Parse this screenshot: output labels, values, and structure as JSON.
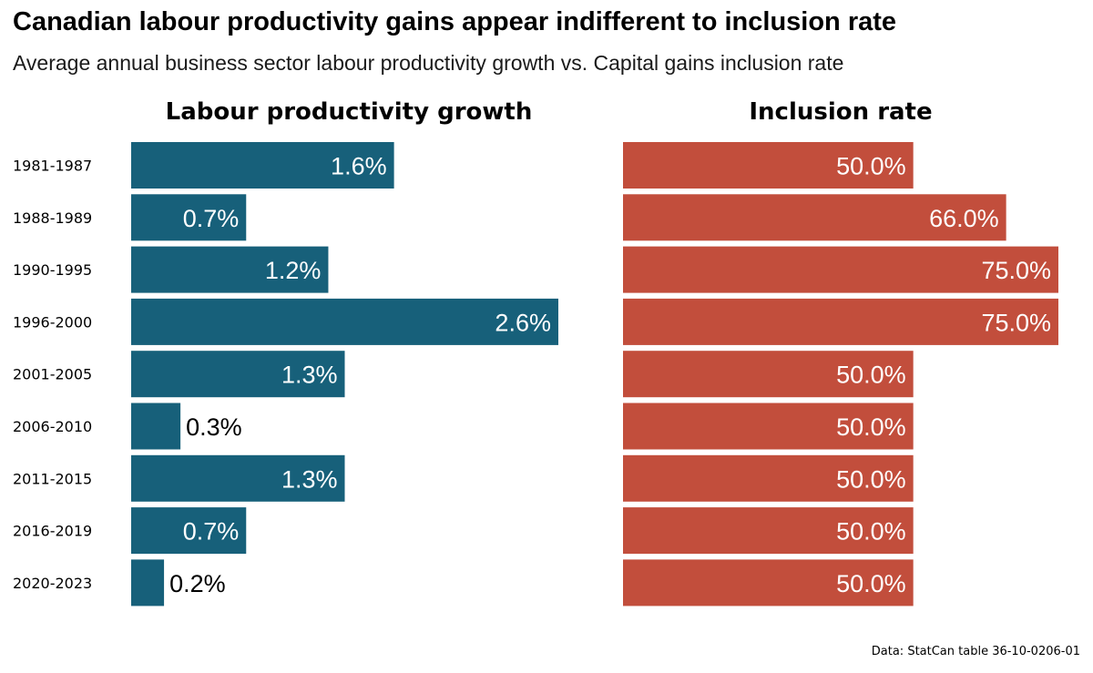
{
  "title": "Canadian labour productivity gains appear indifferent to inclusion rate",
  "subtitle": "Average annual business sector labour productivity growth vs. Capital gains inclusion rate",
  "source": "Data: StatCan table 36-10-0206-01",
  "colors": {
    "productivity": "#17607a",
    "inclusion": "#c24e3c"
  },
  "chart_data": {
    "type": "bar",
    "orientation": "horizontal",
    "categories": [
      "1981-1987",
      "1988-1989",
      "1990-1995",
      "1996-2000",
      "2001-2005",
      "2006-2010",
      "2011-2015",
      "2016-2019",
      "2020-2023"
    ],
    "series": [
      {
        "name": "Labour productivity growth",
        "values": [
          1.6,
          0.7,
          1.2,
          2.6,
          1.3,
          0.3,
          1.3,
          0.7,
          0.2
        ],
        "labels": [
          "1.6%",
          "0.7%",
          "1.2%",
          "2.6%",
          "1.3%",
          "0.3%",
          "1.3%",
          "0.7%",
          "0.2%"
        ],
        "xlim": [
          0,
          2.65
        ]
      },
      {
        "name": "Inclusion rate",
        "values": [
          50.0,
          66.0,
          75.0,
          75.0,
          50.0,
          50.0,
          50.0,
          50.0,
          50.0
        ],
        "labels": [
          "50.0%",
          "66.0%",
          "75.0%",
          "75.0%",
          "50.0%",
          "50.0%",
          "50.0%",
          "50.0%",
          "50.0%"
        ],
        "xlim": [
          0,
          75
        ]
      }
    ],
    "xlabel": "",
    "ylabel": "",
    "grid": false,
    "legend": "none"
  }
}
